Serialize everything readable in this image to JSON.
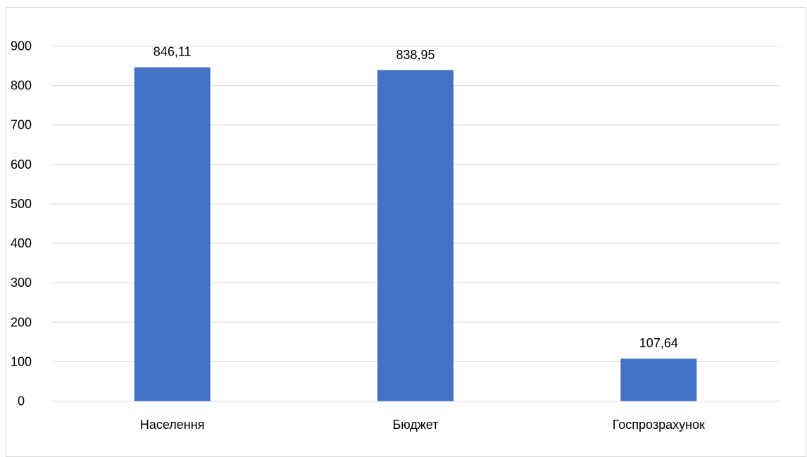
{
  "chart_data": {
    "type": "bar",
    "categories": [
      "Населення",
      "Бюджет",
      "Госпрозрахунок"
    ],
    "values": [
      846.11,
      838.95,
      107.64
    ],
    "data_labels": [
      "846,11",
      "838,95",
      "107,64"
    ],
    "yticks": [
      "0",
      "100",
      "200",
      "300",
      "400",
      "500",
      "600",
      "700",
      "800",
      "900"
    ],
    "ylim": [
      0,
      900
    ],
    "grid": true,
    "legend": "none",
    "title": "",
    "xlabel": "",
    "ylabel": "",
    "colors": {
      "bar": "#4472C4",
      "grid": "#d9d9d9",
      "axis": "#d9d9d9"
    }
  }
}
